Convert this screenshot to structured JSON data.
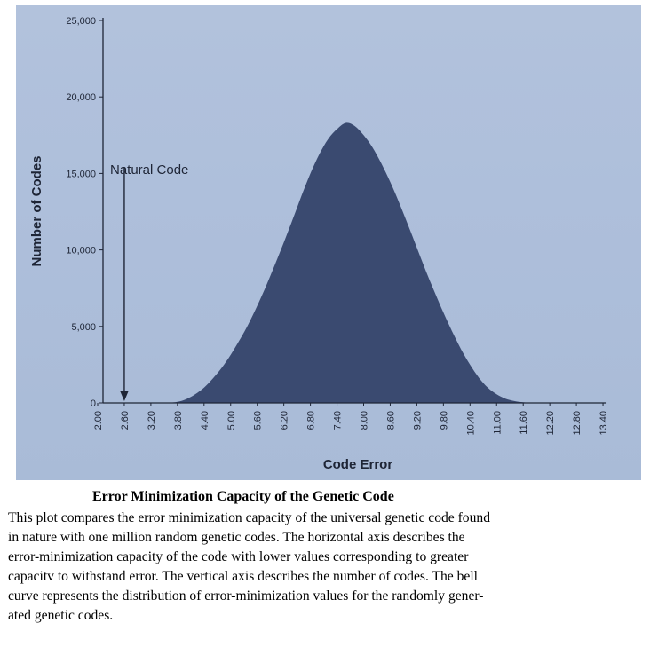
{
  "chart_data": {
    "type": "area",
    "ylabel": "Number of Codes",
    "xlabel": "Code Error",
    "ylim": [
      0,
      25000
    ],
    "yticks": [
      "0",
      "5,000",
      "10,000",
      "15,000",
      "20,000",
      "25,000"
    ],
    "ytick_values": [
      0,
      5000,
      10000,
      15000,
      20000,
      25000
    ],
    "xticks": [
      "2.00",
      "2.60",
      "3.20",
      "3.80",
      "4.40",
      "5.00",
      "5.60",
      "6.20",
      "6.80",
      "7.40",
      "8.00",
      "8.60",
      "9.20",
      "9.80",
      "10.40",
      "11.00",
      "11.60",
      "12.20",
      "12.80",
      "13.40"
    ],
    "xtick_values": [
      2.0,
      2.6,
      3.2,
      3.8,
      4.4,
      5.0,
      5.6,
      6.2,
      6.8,
      7.4,
      8.0,
      8.6,
      9.2,
      9.8,
      10.4,
      11.0,
      11.6,
      12.2,
      12.8,
      13.4
    ],
    "xlim": [
      2.0,
      13.4
    ],
    "x": [
      3.6,
      3.8,
      4.0,
      4.2,
      4.4,
      4.6,
      4.8,
      5.0,
      5.2,
      5.4,
      5.6,
      5.8,
      6.0,
      6.2,
      6.4,
      6.6,
      6.8,
      7.0,
      7.2,
      7.4,
      7.6,
      7.8,
      8.0,
      8.2,
      8.4,
      8.6,
      8.8,
      9.0,
      9.2,
      9.4,
      9.6,
      9.8,
      10.0,
      10.2,
      10.4,
      10.6,
      10.8,
      11.0,
      11.2,
      11.4,
      11.6,
      11.8
    ],
    "values": [
      0,
      70,
      250,
      560,
      1000,
      1600,
      2300,
      3150,
      4100,
      5150,
      6350,
      7650,
      9050,
      10500,
      12000,
      13550,
      15000,
      16250,
      17250,
      17900,
      18300,
      18100,
      17500,
      16700,
      15650,
      14450,
      13100,
      11650,
      10150,
      8650,
      7250,
      5900,
      4650,
      3500,
      2500,
      1650,
      1000,
      560,
      280,
      120,
      40,
      0
    ],
    "fill_color": "#3a4a70",
    "grid": false,
    "annotation": {
      "text": "Natural Code",
      "x": 2.6
    }
  },
  "caption": {
    "title": "Error Minimization Capacity of the Genetic Code",
    "lines": [
      "This plot compares the error minimization capacity of the universal genetic code found",
      "in nature with one million random genetic codes. The horizontal axis describes the",
      "error-minimization capacity of the code with lower values corresponding to greater",
      "capacitv to withstand error. The vertical axis describes the number of codes. The bell",
      "curve represents the distribution of error-minimization values for the randomly gener-",
      "ated genetic codes."
    ]
  }
}
